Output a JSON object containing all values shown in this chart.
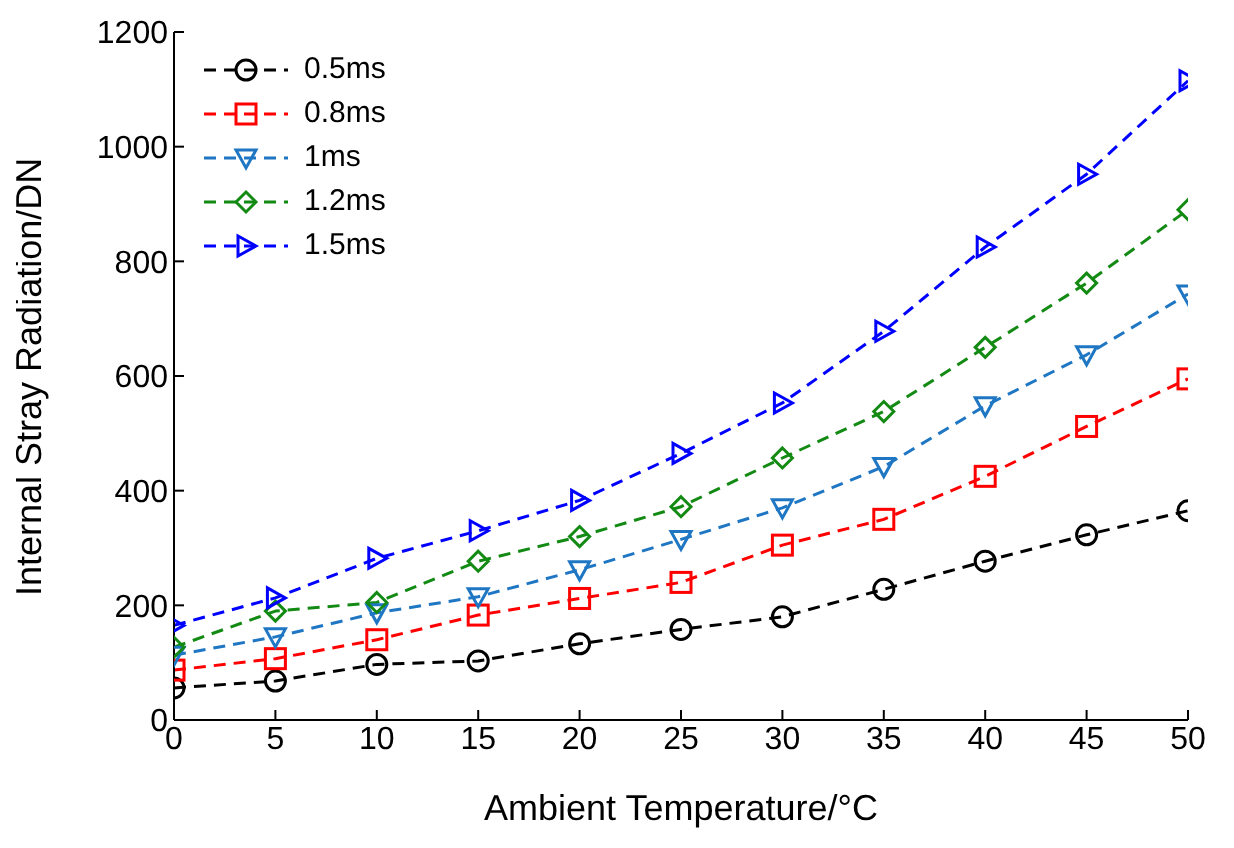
{
  "chart_data": {
    "type": "line",
    "xlabel": "Ambient Temperature/°C",
    "ylabel": "Internal Stray Radiation/DN",
    "x": [
      0,
      5,
      10,
      15,
      20,
      25,
      30,
      35,
      40,
      45,
      50
    ],
    "xlim": [
      0,
      50
    ],
    "xticks": [
      0,
      5,
      10,
      15,
      20,
      25,
      30,
      35,
      40,
      45,
      50
    ],
    "ylim": [
      0,
      1200
    ],
    "yticks": [
      0,
      200,
      400,
      600,
      800,
      1000,
      1200
    ],
    "grid": false,
    "legend": "top left",
    "line_style": "dashed",
    "series": [
      {
        "name": "0.5ms",
        "color": "#000000",
        "marker": "circle",
        "values": [
          56,
          68,
          97,
          103,
          133,
          158,
          180,
          228,
          277,
          323,
          365
        ]
      },
      {
        "name": "0.8ms",
        "color": "#ff0000",
        "marker": "square",
        "values": [
          87,
          107,
          140,
          183,
          212,
          240,
          305,
          350,
          425,
          512,
          595
        ]
      },
      {
        "name": "1ms",
        "color": "#1f77c4",
        "marker": "triangle-down",
        "values": [
          113,
          145,
          187,
          215,
          262,
          315,
          370,
          442,
          548,
          637,
          743
        ]
      },
      {
        "name": "1.2ms",
        "color": "#138a13",
        "marker": "diamond",
        "values": [
          127,
          190,
          205,
          277,
          320,
          372,
          457,
          538,
          650,
          762,
          890
        ]
      },
      {
        "name": "1.5ms",
        "color": "#0000ff",
        "marker": "triangle-right",
        "values": [
          165,
          213,
          282,
          330,
          383,
          465,
          553,
          678,
          825,
          952,
          1115
        ]
      }
    ]
  }
}
